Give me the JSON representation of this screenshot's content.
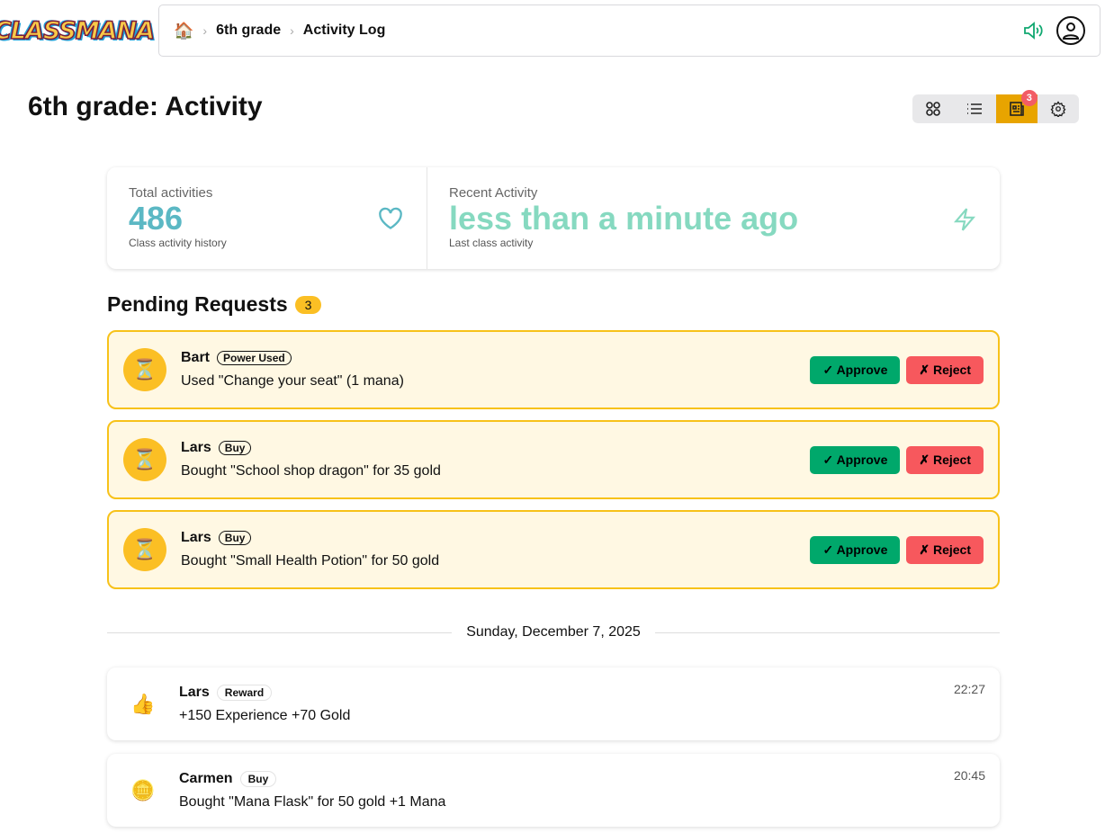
{
  "app": {
    "logo_text": "CLASSMANA"
  },
  "breadcrumb": {
    "home_icon": "house-icon",
    "items": [
      "6th grade",
      "Activity Log"
    ]
  },
  "page": {
    "title": "6th grade: Activity"
  },
  "view_switcher": {
    "active": "activity",
    "badge": "3",
    "colors": {
      "active": "#e8a400",
      "badge": "#f25c66"
    }
  },
  "stats": [
    {
      "label": "Total activities",
      "value": "486",
      "sub": "Class activity history",
      "icon": "heart-icon",
      "color": "#5bb8c4"
    },
    {
      "label": "Recent Activity",
      "value": "less than a minute ago",
      "sub": "Last class activity",
      "icon": "lightning-icon",
      "color": "#86d9c0"
    }
  ],
  "pending": {
    "title": "Pending Requests",
    "count": "3",
    "approve_label": "✓ Approve",
    "reject_label": "✗ Reject",
    "items": [
      {
        "name": "Bart",
        "tag": "Power Used",
        "desc": "Used \"Change your seat\" (1 mana)"
      },
      {
        "name": "Lars",
        "tag": "Buy",
        "desc": "Bought \"School shop dragon\" for 35 gold"
      },
      {
        "name": "Lars",
        "tag": "Buy",
        "desc": "Bought \"Small Health Potion\" for 50 gold"
      }
    ]
  },
  "date_divider": "Sunday, December 7, 2025",
  "activities": [
    {
      "emoji": "👍",
      "name": "Lars",
      "tag": "Reward",
      "desc": "+150 Experience +70 Gold",
      "time": "22:27"
    },
    {
      "emoji": "🪙",
      "name": "Carmen",
      "tag": "Buy",
      "desc": "Bought \"Mana Flask\" for 50 gold +1 Mana",
      "time": "20:45"
    }
  ]
}
